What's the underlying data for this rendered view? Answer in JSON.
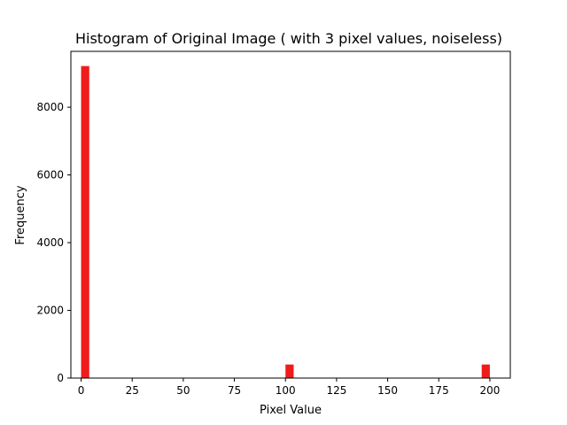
{
  "chart_data": {
    "type": "bar",
    "title": "Histogram of Original Image ( with 3 pixel values, noiseless)",
    "xlabel": "Pixel Value",
    "ylabel": "Frequency",
    "xlim": [
      -5,
      210
    ],
    "ylim": [
      0,
      9650
    ],
    "xticks": [
      0,
      25,
      50,
      75,
      100,
      125,
      150,
      175,
      200
    ],
    "yticks": [
      0,
      2000,
      4000,
      6000,
      8000
    ],
    "bin_width": 4,
    "bars": [
      {
        "x": 2,
        "value": 9216
      },
      {
        "x": 102,
        "value": 400
      },
      {
        "x": 198,
        "value": 400
      }
    ],
    "bar_color": "#f01c1c",
    "grid": false,
    "legend": "none"
  }
}
